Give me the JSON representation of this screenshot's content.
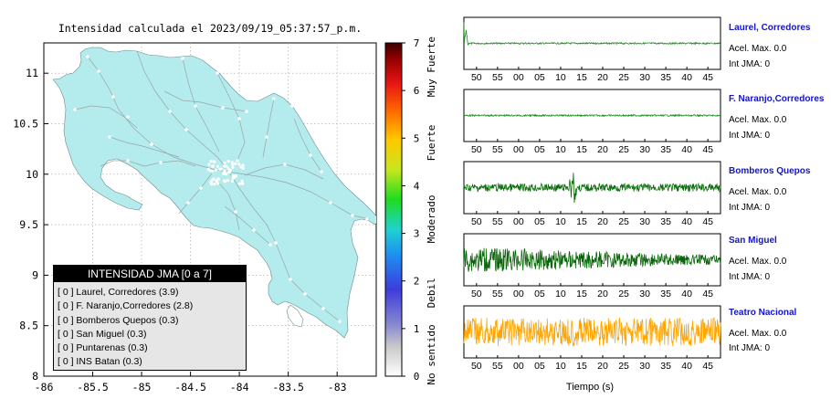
{
  "map": {
    "title": "Intensidad calculada el 2023/09/19_05:37:57_p.m.",
    "x_ticks": [
      "-86",
      "-85.5",
      "-85",
      "-84.5",
      "-84",
      "-83.5",
      "-83"
    ],
    "y_ticks": [
      "11",
      "10.5",
      "10",
      "9.5",
      "9",
      "8.5",
      "8"
    ],
    "colorbar": {
      "ticks": [
        "7",
        "6",
        "5",
        "4",
        "3",
        "2",
        "1",
        "0"
      ],
      "labels": [
        "Muy Fuerte",
        "Fuerte",
        "Moderado",
        "Debil",
        "No sentido"
      ]
    },
    "legend": {
      "title": "INTENSIDAD JMA [0 a 7]",
      "items": [
        "[ 0 ]  Laurel, Corredores (3.9)",
        "[ 0 ]  F. Naranjo,Corredores (2.8)",
        "[ 0 ]  Bomberos Quepos (0.3)",
        "[ 0 ]  San Miguel (0.3)",
        "[ 0 ]  Puntarenas (0.3)",
        "[ 0 ]  INS Batan (0.3)"
      ]
    }
  },
  "waveforms": {
    "time_ticks": [
      "50",
      "55",
      "00",
      "05",
      "10",
      "15",
      "20",
      "25",
      "30",
      "35",
      "40",
      "45"
    ],
    "xlabel": "Tiempo (s)",
    "stations": [
      {
        "name": "Laurel, Corredores",
        "acel": "Acel. Max. 0.0",
        "jma": "Int JMA: 0",
        "color": "#1e8c1e"
      },
      {
        "name": "F. Naranjo,Corredores",
        "acel": "Acel. Max. 0.0",
        "jma": "Int JMA: 0",
        "color": "#1e8c1e"
      },
      {
        "name": "Bomberos Quepos",
        "acel": "Acel. Max. 0.0",
        "jma": "Int JMA: 0",
        "color": "#0a6e0a"
      },
      {
        "name": "San Miguel",
        "acel": "Acel. Max. 0.0",
        "jma": "Int JMA: 0",
        "color": "#0a640a"
      },
      {
        "name": "Teatro Nacional",
        "acel": "Acel. Max. 0.0",
        "jma": "Int JMA: 0",
        "color": "#ffa500"
      }
    ]
  },
  "chart_data": [
    {
      "type": "heatmap",
      "title": "Intensidad calculada el 2023/09/19_05:37:57_p.m.",
      "xlim": [
        -86,
        -82.6
      ],
      "ylim": [
        8,
        11.3
      ],
      "x_ticks": [
        -86,
        -85.5,
        -85,
        -84.5,
        -84,
        -83.5,
        -83
      ],
      "y_ticks": [
        8,
        8.5,
        9,
        9.5,
        10,
        10.5,
        11
      ],
      "colorbar_range": [
        0,
        7
      ],
      "land_color": "#b4ebed",
      "grid": true
    },
    {
      "type": "line",
      "xlabel": "Tiempo (s)",
      "x_ticks": [
        "50",
        "55",
        "00",
        "05",
        "10",
        "15",
        "20",
        "25",
        "30",
        "35",
        "40",
        "45"
      ],
      "series": [
        {
          "name": "Laurel, Corredores",
          "amplitude": 0.03,
          "spike_at": 47,
          "spike_amp": 0.9
        },
        {
          "name": "F. Naranjo,Corredores",
          "amplitude": 0.03
        },
        {
          "name": "Bomberos Quepos",
          "amplitude": 0.15,
          "spike_at": 13,
          "spike_amp": 0.75
        },
        {
          "name": "San Miguel",
          "amplitude": 0.35,
          "decay": true
        },
        {
          "name": "Teatro Nacional",
          "amplitude": 0.55
        }
      ]
    }
  ]
}
